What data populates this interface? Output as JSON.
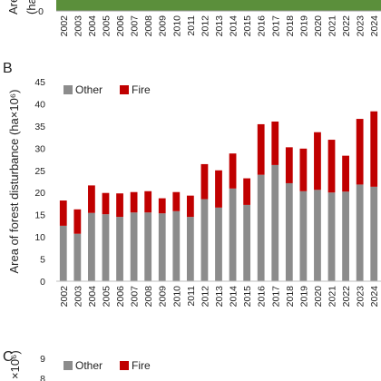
{
  "top_panel": {
    "ylabel_partial": "Area",
    "ylabel_partial2": "(ha",
    "tick_zero": "0",
    "bar_color": "#5b8f3b",
    "years": [
      "2002",
      "2003",
      "2004",
      "2005",
      "2006",
      "2007",
      "2008",
      "2009",
      "2010",
      "2011",
      "2012",
      "2013",
      "2014",
      "2015",
      "2016",
      "2017",
      "2018",
      "2019",
      "2020",
      "2021",
      "2022",
      "2023",
      "2024"
    ]
  },
  "chart_data": [
    {
      "panel_label": "B",
      "type": "bar",
      "stacked": true,
      "categories": [
        "2002",
        "2003",
        "2004",
        "2005",
        "2006",
        "2007",
        "2008",
        "2009",
        "2010",
        "2011",
        "2012",
        "2013",
        "2014",
        "2015",
        "2016",
        "2017",
        "2018",
        "2019",
        "2020",
        "2021",
        "2022",
        "2023",
        "2024"
      ],
      "series": [
        {
          "name": "Other",
          "color": "#8c8c8c",
          "values": [
            12.5,
            10.7,
            15.4,
            15.1,
            14.5,
            15.5,
            15.5,
            15.3,
            15.8,
            14.5,
            18.5,
            16.6,
            20.9,
            17.2,
            24.0,
            26.2,
            22.1,
            20.3,
            20.6,
            20.0,
            20.2,
            21.8,
            21.3
          ]
        },
        {
          "name": "Fire",
          "color": "#c00000",
          "values": [
            5.7,
            5.5,
            6.2,
            4.8,
            5.3,
            4.6,
            4.8,
            3.4,
            4.3,
            4.8,
            7.9,
            8.4,
            7.9,
            6.0,
            11.4,
            9.8,
            8.1,
            9.6,
            13.0,
            11.9,
            8.1,
            14.8,
            17.0
          ]
        }
      ],
      "ylabel": "Area of forest disturbance (ha×10⁶)",
      "ylim": [
        0,
        45
      ],
      "yticks": [
        0,
        5,
        10,
        15,
        20,
        25,
        30,
        35,
        40,
        45
      ],
      "grid": false,
      "legend": "top-left"
    },
    {
      "panel_label": "C",
      "type": "bar",
      "stacked": true,
      "series": [
        {
          "name": "Other",
          "color": "#8c8c8c"
        },
        {
          "name": "Fire",
          "color": "#c00000"
        }
      ],
      "ylabel_partial": "×10⁶)",
      "yticks_visible": [
        9,
        8
      ],
      "legend": "top-left"
    }
  ]
}
